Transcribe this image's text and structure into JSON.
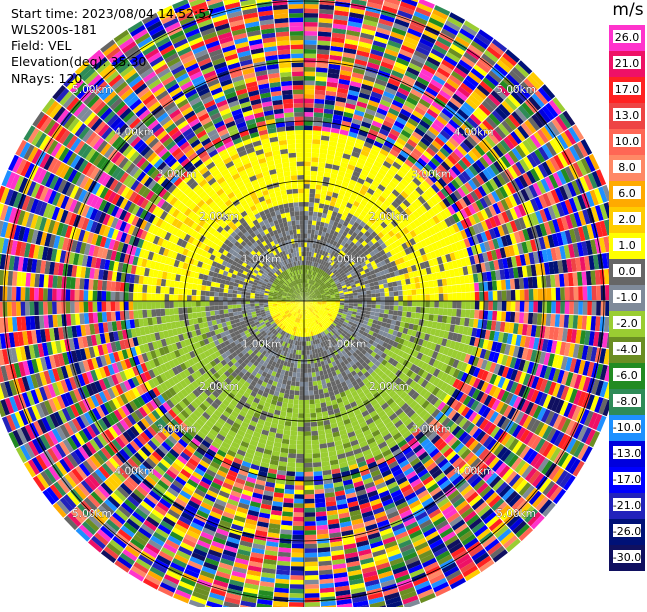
{
  "header": {
    "start_time": "Start time: 2023/08/04 14:52:57",
    "instrument": "WLS200s-181",
    "field": "Field: VEL",
    "elevation": "Elevation(deg): 35.30",
    "nrays": "NRays: 120"
  },
  "chart_data": {
    "type": "heatmap",
    "subtype": "ppi-polar",
    "unit": "m/s",
    "nrays": 120,
    "elevation_deg": 35.3,
    "field": "VEL",
    "range_rings_km": [
      1.0,
      2.0,
      3.0,
      4.0,
      5.0
    ],
    "range_ring_labels": [
      "1.00km",
      "2.00km",
      "3.00km",
      "4.00km",
      "5.00km"
    ],
    "max_range_km": 5.4,
    "colorbar": {
      "ticks": [
        "26.0",
        "21.0",
        "17.0",
        "13.0",
        "10.0",
        "8.0",
        "6.0",
        "2.0",
        "1.0",
        "0.0",
        "-1.0",
        "-2.0",
        "-4.0",
        "-6.0",
        "-8.0",
        "-10.0",
        "-13.0",
        "-17.0",
        "-21.0",
        "-26.0",
        "-30.0"
      ],
      "colors": [
        "#ff33cc",
        "#ee1166",
        "#ff2222",
        "#ee4444",
        "#ff6655",
        "#ff8866",
        "#ffaa00",
        "#ffcc00",
        "#ffff00",
        "#666666",
        "#7f8a99",
        "#9acd32",
        "#6b8e23",
        "#228b22",
        "#2e8b57",
        "#1e90ff",
        "#0000dd",
        "#0000ff",
        "#2222bb",
        "#001177",
        "#101060"
      ],
      "range": [
        -30.0,
        26.0
      ]
    },
    "velocity_pattern": [
      {
        "range_km": [
          0.0,
          0.55
        ],
        "description": "near center: yellow (+1 to +2) to the south, olive (-2 to -4) to the north",
        "values": [
          2.0,
          -3.0
        ]
      },
      {
        "range_km": [
          0.55,
          1.6
        ],
        "description": "grey near-zero ring",
        "values": [
          0.0,
          -1.0
        ]
      },
      {
        "range_km": [
          1.6,
          2.8
        ],
        "description": "yellow arc north / yellow-green arc south",
        "values": [
          1.5,
          -1.5
        ]
      },
      {
        "range_km": [
          2.8,
          5.4
        ],
        "description": "noisy returns with full color spread",
        "values": [
          -30.0,
          26.0
        ]
      }
    ]
  },
  "colors": {
    "background": "#ffffff",
    "rings": "#000000"
  }
}
